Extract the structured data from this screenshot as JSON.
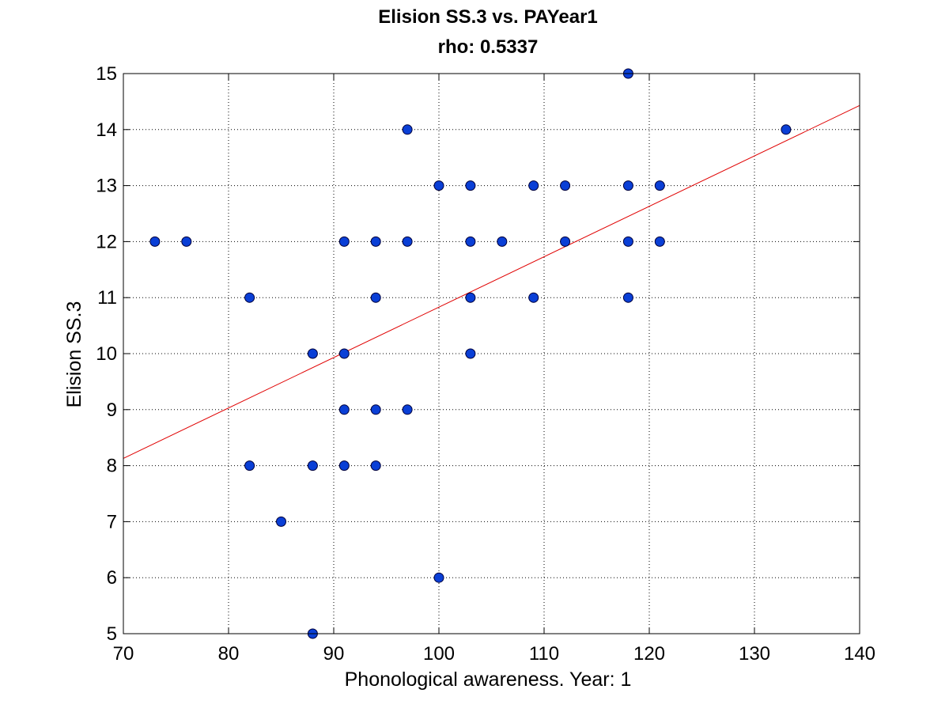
{
  "chart_data": {
    "type": "scatter",
    "title": "Elision SS.3 vs. PAYear1",
    "subtitle": "rho: 0.5337",
    "xlabel": "Phonological awareness. Year: 1",
    "ylabel": "Elision SS.3",
    "xlim": [
      70,
      140
    ],
    "ylim": [
      5,
      15
    ],
    "xticks": [
      "70",
      "80",
      "90",
      "100",
      "110",
      "120",
      "130",
      "140"
    ],
    "yticks": [
      "5",
      "6",
      "7",
      "8",
      "9",
      "10",
      "11",
      "12",
      "13",
      "14",
      "15"
    ],
    "grid": true,
    "points": [
      {
        "x": 73,
        "y": 12
      },
      {
        "x": 76,
        "y": 12
      },
      {
        "x": 82,
        "y": 11
      },
      {
        "x": 82,
        "y": 8
      },
      {
        "x": 85,
        "y": 7
      },
      {
        "x": 88,
        "y": 10
      },
      {
        "x": 88,
        "y": 8
      },
      {
        "x": 88,
        "y": 5
      },
      {
        "x": 91,
        "y": 12
      },
      {
        "x": 91,
        "y": 10
      },
      {
        "x": 91,
        "y": 9
      },
      {
        "x": 91,
        "y": 8
      },
      {
        "x": 94,
        "y": 12
      },
      {
        "x": 94,
        "y": 11
      },
      {
        "x": 94,
        "y": 9
      },
      {
        "x": 94,
        "y": 8
      },
      {
        "x": 97,
        "y": 14
      },
      {
        "x": 97,
        "y": 12
      },
      {
        "x": 97,
        "y": 9
      },
      {
        "x": 100,
        "y": 13
      },
      {
        "x": 100,
        "y": 6
      },
      {
        "x": 103,
        "y": 13
      },
      {
        "x": 103,
        "y": 12
      },
      {
        "x": 103,
        "y": 11
      },
      {
        "x": 103,
        "y": 10
      },
      {
        "x": 106,
        "y": 12
      },
      {
        "x": 109,
        "y": 13
      },
      {
        "x": 109,
        "y": 11
      },
      {
        "x": 112,
        "y": 13
      },
      {
        "x": 112,
        "y": 12
      },
      {
        "x": 118,
        "y": 15
      },
      {
        "x": 118,
        "y": 13
      },
      {
        "x": 118,
        "y": 12
      },
      {
        "x": 118,
        "y": 11
      },
      {
        "x": 121,
        "y": 13
      },
      {
        "x": 121,
        "y": 12
      },
      {
        "x": 133,
        "y": 14
      }
    ],
    "fit_line": {
      "x": [
        70,
        140
      ],
      "y": [
        8.13,
        14.43
      ]
    },
    "colors": {
      "marker_fill": "#0a3fd6",
      "marker_edge": "#00003a",
      "fit_line": "#e00000",
      "grid": "#000000"
    }
  }
}
